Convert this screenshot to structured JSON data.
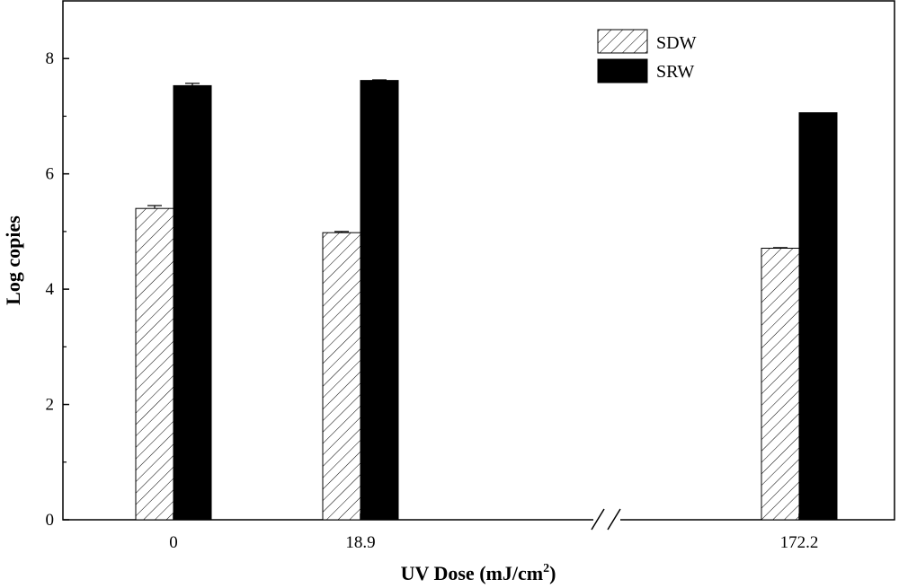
{
  "chart_data": {
    "type": "bar",
    "title": "",
    "xlabel": "UV Dose (mJ/cm",
    "xlabel_superscript": "2",
    "xlabel_suffix": ")",
    "ylabel": "Log copies",
    "categories": [
      "0",
      "18.9",
      "172.2"
    ],
    "ylim": [
      0,
      9
    ],
    "yticks": [
      "0",
      "2",
      "4",
      "6",
      "8"
    ],
    "x_axis_break": "between 18.9 and 172.2",
    "legend_placement": "top-right",
    "grid": false,
    "series": [
      {
        "name": "SDW",
        "fill": "hatched",
        "values": [
          5.4,
          4.98,
          4.71
        ],
        "errors": [
          0.05,
          0.02,
          0.01
        ]
      },
      {
        "name": "SRW",
        "fill": "solid",
        "color": "#000000",
        "values": [
          7.53,
          7.62,
          7.06
        ],
        "errors": [
          0.04,
          0.01,
          0.0
        ]
      }
    ]
  }
}
